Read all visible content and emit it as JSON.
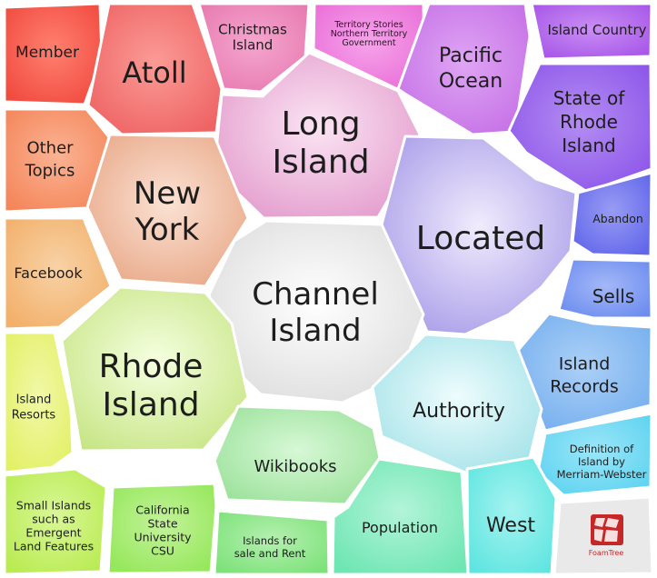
{
  "topics": [
    {
      "id": "member",
      "label": [
        "Member"
      ],
      "color": "#f14b3f",
      "glow": "#ff8070"
    },
    {
      "id": "atoll",
      "label": [
        "Atoll"
      ],
      "color": "#ee6363",
      "glow": "#fb9b96"
    },
    {
      "id": "christmas-island",
      "label": [
        "Christmas",
        "Island"
      ],
      "color": "#e77ab0",
      "glow": "#f5a6cf"
    },
    {
      "id": "territory-stories",
      "label": [
        "Territory Stories",
        "Northern Territory",
        "Government"
      ],
      "color": "#ea6fd8",
      "glow": "#f6a3ea"
    },
    {
      "id": "pacific-ocean",
      "label": [
        "Pacific",
        "Ocean"
      ],
      "color": "#c570e6",
      "glow": "#dfa5f4"
    },
    {
      "id": "island-country",
      "label": [
        "Island Country"
      ],
      "color": "#a756e8",
      "glow": "#c98ff3"
    },
    {
      "id": "other-topics",
      "label": [
        "Other",
        "Topics"
      ],
      "color": "#f4865b",
      "glow": "#fbb393"
    },
    {
      "id": "long-island",
      "label": [
        "Long",
        "Island"
      ],
      "color": "#e39bcc",
      "glow": "#fbe4f3"
    },
    {
      "id": "state-of-rhode-island",
      "label": [
        "State of",
        "Rhode",
        "Island"
      ],
      "color": "#8c55e9",
      "glow": "#b48df3"
    },
    {
      "id": "new-york",
      "label": [
        "New",
        "York"
      ],
      "color": "#e8a786",
      "glow": "#fbe2d4"
    },
    {
      "id": "located",
      "label": [
        "Located"
      ],
      "color": "#a89be8",
      "glow": "#f0ecfd"
    },
    {
      "id": "abandon",
      "label": [
        "Abandon"
      ],
      "color": "#6166ea",
      "glow": "#989cf4"
    },
    {
      "id": "facebook",
      "label": [
        "Facebook"
      ],
      "color": "#f2b06a",
      "glow": "#f8d2a6"
    },
    {
      "id": "channel-island",
      "label": [
        "Channel",
        "Island"
      ],
      "color": "#dcdcdc",
      "glow": "#ffffff"
    },
    {
      "id": "sells",
      "label": [
        "Sells"
      ],
      "color": "#6c8cef",
      "glow": "#a4b8f7"
    },
    {
      "id": "rhode-island",
      "label": [
        "Rhode",
        "Island"
      ],
      "color": "#c7e585",
      "glow": "#f5ffe0"
    },
    {
      "id": "island-records",
      "label": [
        "Island",
        "Records"
      ],
      "color": "#74aeee",
      "glow": "#abd0f7"
    },
    {
      "id": "island-resorts",
      "label": [
        "Island",
        "Resorts"
      ],
      "color": "#e3f066",
      "glow": "#f1f8a8"
    },
    {
      "id": "authority",
      "label": [
        "Authority"
      ],
      "color": "#a3e2e8",
      "glow": "#eefcfd"
    },
    {
      "id": "definition-of-island",
      "label": [
        "Definition of",
        "Island by",
        "Merriam-Webster"
      ],
      "color": "#5ed3f0",
      "glow": "#9be6f8"
    },
    {
      "id": "wikibooks",
      "label": [
        "Wikibooks"
      ],
      "color": "#9be19a",
      "glow": "#d7f8d6"
    },
    {
      "id": "small-islands",
      "label": [
        "Small Islands",
        "such as",
        "Emergent",
        "Land Features"
      ],
      "color": "#b9eb52",
      "glow": "#d9f797"
    },
    {
      "id": "california-state-university",
      "label": [
        "California",
        "State",
        "University",
        "CSU"
      ],
      "color": "#95e75b",
      "glow": "#c3f39a"
    },
    {
      "id": "islands-for-sale",
      "label": [
        "Islands for",
        "sale and Rent"
      ],
      "color": "#7de279",
      "glow": "#b5f0b1"
    },
    {
      "id": "population",
      "label": [
        "Population"
      ],
      "color": "#6fe6b3",
      "glow": "#b3f4d9"
    },
    {
      "id": "west",
      "label": [
        "West"
      ],
      "color": "#5fe5e0",
      "glow": "#a5f3f0"
    }
  ],
  "branding": {
    "label": "FoamTree",
    "icon": "foamtree-logo-icon",
    "color": "#c62828"
  }
}
